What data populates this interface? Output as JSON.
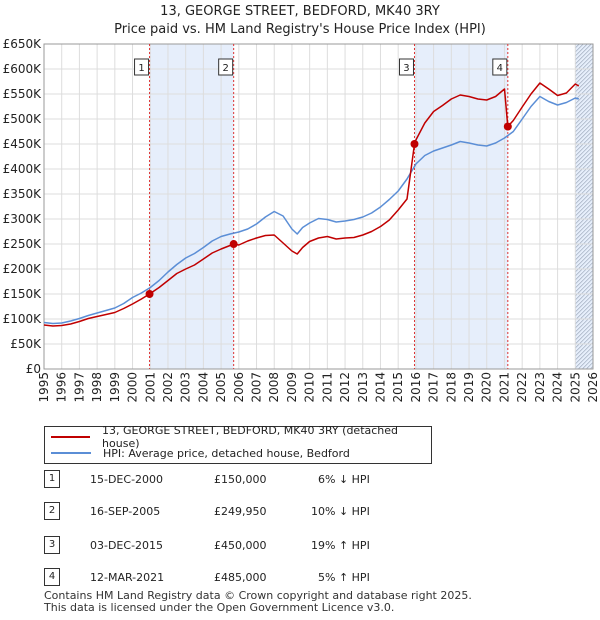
{
  "colors": {
    "property": "#c00000",
    "hpi": "#5b8ed6",
    "shade": "#e6eefb",
    "grid": "#dddddd",
    "marker_line": "#dd3333"
  },
  "chart_data": {
    "type": "line",
    "title": "13, GEORGE STREET, BEDFORD, MK40 3RY",
    "subtitle": "Price paid vs. HM Land Registry's House Price Index (HPI)",
    "ylim": [
      0,
      650000
    ],
    "xlim": [
      1995,
      2026
    ],
    "y_tick_values": [
      0,
      50000,
      100000,
      150000,
      200000,
      250000,
      300000,
      350000,
      400000,
      450000,
      500000,
      550000,
      600000,
      650000
    ],
    "y_tick_labels": [
      "£0",
      "£50K",
      "£100K",
      "£150K",
      "£200K",
      "£250K",
      "£300K",
      "£350K",
      "£400K",
      "£450K",
      "£500K",
      "£550K",
      "£600K",
      "£650K"
    ],
    "x_tick_labels": [
      "1995",
      "1996",
      "1997",
      "1998",
      "1999",
      "2000",
      "2001",
      "2002",
      "2003",
      "2004",
      "2005",
      "2006",
      "2007",
      "2008",
      "2009",
      "2010",
      "2011",
      "2012",
      "2013",
      "2014",
      "2015",
      "2016",
      "2017",
      "2018",
      "2019",
      "2020",
      "2021",
      "2022",
      "2023",
      "2024",
      "2025",
      "2026"
    ],
    "grid": true,
    "series": [
      {
        "name": "13, GEORGE STREET, BEDFORD, MK40 3RY (detached house)",
        "color": "#c00000",
        "x": [
          1995.0,
          1995.5,
          1996.0,
          1996.5,
          1997.0,
          1997.5,
          1998.0,
          1998.5,
          1999.0,
          1999.5,
          2000.0,
          2000.5,
          2000.96,
          2001.5,
          2002.0,
          2002.5,
          2003.0,
          2003.5,
          2004.0,
          2004.5,
          2005.0,
          2005.5,
          2005.71,
          2006.0,
          2006.5,
          2007.0,
          2007.5,
          2008.0,
          2008.5,
          2009.0,
          2009.3,
          2009.6,
          2010.0,
          2010.5,
          2011.0,
          2011.5,
          2012.0,
          2012.5,
          2013.0,
          2013.5,
          2014.0,
          2014.5,
          2015.0,
          2015.5,
          2015.92,
          2016.0,
          2016.5,
          2017.0,
          2017.5,
          2018.0,
          2018.5,
          2019.0,
          2019.5,
          2020.0,
          2020.5,
          2021.0,
          2021.19,
          2021.5,
          2022.0,
          2022.5,
          2023.0,
          2023.5,
          2024.0,
          2024.5,
          2025.0,
          2025.2
        ],
        "values": [
          88000,
          86000,
          87000,
          90000,
          95000,
          101000,
          105000,
          109000,
          113000,
          121000,
          130000,
          140000,
          150000,
          163000,
          177000,
          191000,
          200000,
          208000,
          220000,
          232000,
          240000,
          247000,
          249950,
          248000,
          256000,
          262000,
          267000,
          268000,
          252000,
          236000,
          230000,
          243000,
          255000,
          262000,
          265000,
          260000,
          262000,
          263000,
          268000,
          275000,
          285000,
          298000,
          318000,
          340000,
          450000,
          458000,
          492000,
          515000,
          527000,
          540000,
          548000,
          545000,
          540000,
          538000,
          545000,
          560000,
          485000,
          497000,
          524000,
          550000,
          572000,
          560000,
          547000,
          552000,
          570000,
          566000
        ]
      },
      {
        "name": "HPI: Average price, detached house, Bedford",
        "color": "#5b8ed6",
        "x": [
          1995.0,
          1995.5,
          1996.0,
          1996.5,
          1997.0,
          1997.5,
          1998.0,
          1998.5,
          1999.0,
          1999.5,
          2000.0,
          2000.5,
          2001.0,
          2001.5,
          2002.0,
          2002.5,
          2003.0,
          2003.5,
          2004.0,
          2004.5,
          2005.0,
          2005.5,
          2006.0,
          2006.5,
          2007.0,
          2007.5,
          2008.0,
          2008.5,
          2009.0,
          2009.3,
          2009.6,
          2010.0,
          2010.5,
          2011.0,
          2011.5,
          2012.0,
          2012.5,
          2013.0,
          2013.5,
          2014.0,
          2014.5,
          2015.0,
          2015.5,
          2016.0,
          2016.5,
          2017.0,
          2017.5,
          2018.0,
          2018.5,
          2019.0,
          2019.5,
          2020.0,
          2020.5,
          2021.0,
          2021.5,
          2022.0,
          2022.5,
          2023.0,
          2023.5,
          2024.0,
          2024.5,
          2025.0,
          2025.2
        ],
        "values": [
          93000,
          91000,
          92000,
          96000,
          101000,
          107000,
          112000,
          117000,
          122000,
          131000,
          143000,
          152000,
          163000,
          177000,
          194000,
          209000,
          222000,
          231000,
          243000,
          256000,
          265000,
          270000,
          274000,
          280000,
          290000,
          304000,
          315000,
          306000,
          280000,
          270000,
          283000,
          292000,
          301000,
          299000,
          294000,
          296000,
          299000,
          304000,
          312000,
          324000,
          339000,
          356000,
          380000,
          410000,
          427000,
          436000,
          442000,
          448000,
          455000,
          452000,
          448000,
          446000,
          452000,
          462000,
          475000,
          500000,
          525000,
          545000,
          535000,
          528000,
          533000,
          542000,
          540000
        ]
      }
    ],
    "sales": [
      {
        "label": "1",
        "x": 2000.96,
        "value": 150000
      },
      {
        "label": "2",
        "x": 2005.71,
        "value": 249950
      },
      {
        "label": "3",
        "x": 2015.92,
        "value": 450000
      },
      {
        "label": "4",
        "x": 2021.19,
        "value": 485000
      }
    ],
    "shaded_periods": [
      [
        2000.96,
        2005.71
      ],
      [
        2015.92,
        2021.19
      ],
      [
        2025.0,
        2026.0
      ]
    ]
  },
  "legend": {
    "property_label": "13, GEORGE STREET, BEDFORD, MK40 3RY (detached house)",
    "hpi_label": "HPI: Average price, detached house, Bedford"
  },
  "transactions": [
    {
      "num": "1",
      "date": "15-DEC-2000",
      "price": "£150,000",
      "hpi": "6% ↓ HPI"
    },
    {
      "num": "2",
      "date": "16-SEP-2005",
      "price": "£249,950",
      "hpi": "10% ↓ HPI"
    },
    {
      "num": "3",
      "date": "03-DEC-2015",
      "price": "£450,000",
      "hpi": "19% ↑ HPI"
    },
    {
      "num": "4",
      "date": "12-MAR-2021",
      "price": "£485,000",
      "hpi": "5% ↑ HPI"
    }
  ],
  "footer": {
    "line1": "Contains HM Land Registry data © Crown copyright and database right 2025.",
    "line2": "This data is licensed under the Open Government Licence v3.0."
  }
}
